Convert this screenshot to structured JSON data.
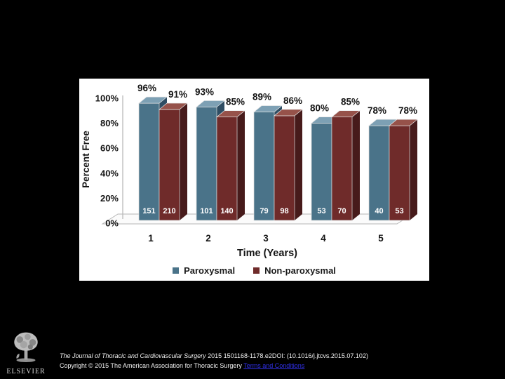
{
  "chart_data": {
    "type": "bar",
    "title": "",
    "categories": [
      "1",
      "2",
      "3",
      "4",
      "5"
    ],
    "series": [
      {
        "name": "Paroxysmal",
        "values": [
          96,
          93,
          89,
          80,
          78
        ],
        "counts": [
          151,
          101,
          79,
          53,
          40
        ],
        "face_color": "#4a7389",
        "top_color": "#7da0b4",
        "side_color": "#2e4d63"
      },
      {
        "name": "Non-paroxysmal",
        "values": [
          91,
          85,
          86,
          85,
          78
        ],
        "counts": [
          210,
          140,
          98,
          70,
          53
        ],
        "face_color": "#6f2b2a",
        "top_color": "#96524a",
        "side_color": "#471b1b"
      }
    ],
    "value_label_suffix": "%",
    "xlabel": "Time (Years)",
    "ylabel": "Percent Free",
    "y_ticks": [
      "0%",
      "20%",
      "40%",
      "60%",
      "80%",
      "100%"
    ],
    "y_tick_values": [
      0,
      20,
      40,
      60,
      80,
      100
    ],
    "ylim": [
      0,
      100
    ],
    "legend_position": "bottom",
    "grid": false,
    "style": "3d"
  },
  "colors": {
    "background": "#000000",
    "panel": "#ffffff",
    "axis": "#b5b5b5",
    "text": "#141414",
    "count_label": "#ffffff",
    "link": "#3030e8",
    "footer_text": "#f2f2f2"
  },
  "logo": {
    "text": "ELSEVIER"
  },
  "footer": {
    "citation_journal": "The Journal of Thoracic and Cardiovascular Surgery",
    "citation_rest": " 2015 1501168-1178.e2DOI: (10.1016/j.jtcvs.2015.07.102)",
    "copyright": "Copyright © 2015 The American Association for Thoracic Surgery ",
    "link_label": "Terms and Conditions"
  }
}
